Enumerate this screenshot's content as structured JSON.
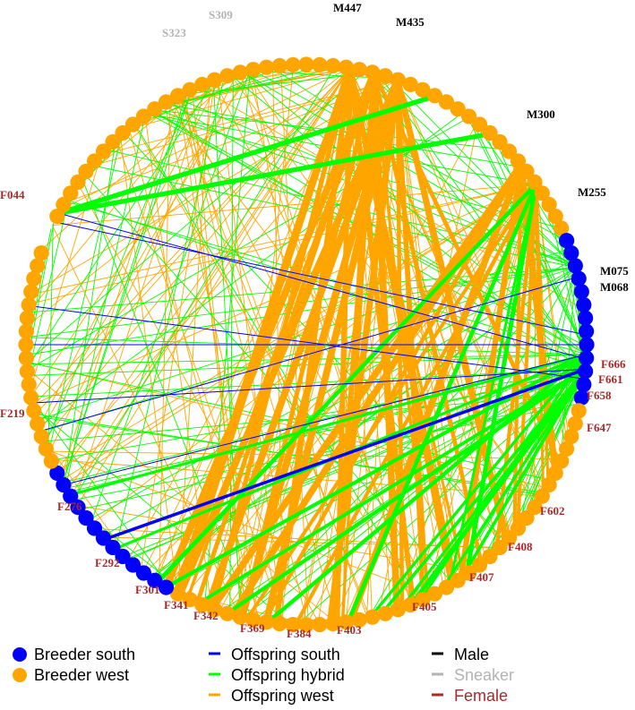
{
  "colors": {
    "south": "#0000ff",
    "west": "#ffa500",
    "hybrid": "#00ff00",
    "male": "#000000",
    "sneaker": "#b3b3b3",
    "female": "#a52a2a"
  },
  "labels": [
    {
      "text": "S309",
      "sex": "sneaker"
    },
    {
      "text": "S323",
      "sex": "sneaker"
    },
    {
      "text": "M447",
      "sex": "male"
    },
    {
      "text": "M435",
      "sex": "male"
    },
    {
      "text": "M300",
      "sex": "male"
    },
    {
      "text": "M255",
      "sex": "male"
    },
    {
      "text": "M075",
      "sex": "male"
    },
    {
      "text": "M068",
      "sex": "male"
    },
    {
      "text": "F044",
      "sex": "female"
    },
    {
      "text": "F219",
      "sex": "female"
    },
    {
      "text": "F276",
      "sex": "female"
    },
    {
      "text": "F292",
      "sex": "female"
    },
    {
      "text": "F301",
      "sex": "female"
    },
    {
      "text": "F341",
      "sex": "female"
    },
    {
      "text": "F342",
      "sex": "female"
    },
    {
      "text": "F369",
      "sex": "female"
    },
    {
      "text": "F384",
      "sex": "female"
    },
    {
      "text": "F403",
      "sex": "female"
    },
    {
      "text": "F405",
      "sex": "female"
    },
    {
      "text": "F407",
      "sex": "female"
    },
    {
      "text": "F408",
      "sex": "female"
    },
    {
      "text": "F602",
      "sex": "female"
    },
    {
      "text": "F647",
      "sex": "female"
    },
    {
      "text": "F658",
      "sex": "female"
    },
    {
      "text": "F661",
      "sex": "female"
    },
    {
      "text": "F666",
      "sex": "female"
    }
  ],
  "legend": {
    "breeder_south": "Breeder south",
    "breeder_west": "Breeder west",
    "offspring_south": "Offspring south",
    "offspring_hybrid": "Offspring hybrid",
    "offspring_west": "Offspring west",
    "male": "Male",
    "sneaker": "Sneaker",
    "female": "Female"
  }
}
